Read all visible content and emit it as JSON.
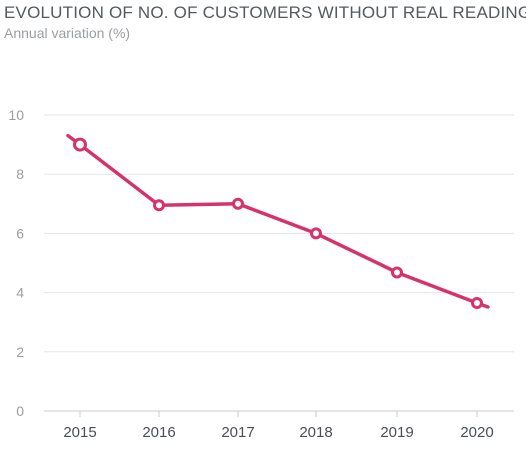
{
  "chart_data": {
    "type": "line",
    "title": "EVOLUTION OF NO. OF CUSTOMERS WITHOUT REAL READING",
    "subtitle": "Annual variation (%)",
    "xlabel": "",
    "ylabel": "",
    "categories": [
      "2015",
      "2016",
      "2017",
      "2018",
      "2019",
      "2020"
    ],
    "series": [
      {
        "values": [
          9.0,
          6.95,
          7.0,
          6.0,
          4.68,
          3.65
        ]
      }
    ],
    "yticks": [
      0,
      2,
      4,
      6,
      8,
      10
    ],
    "ylim": [
      0,
      10
    ],
    "grid": "horizontal",
    "legend": "none",
    "colors": {
      "line": "#d6336c",
      "grid": "#e3e5e7",
      "axis": "#c8cbce"
    }
  }
}
